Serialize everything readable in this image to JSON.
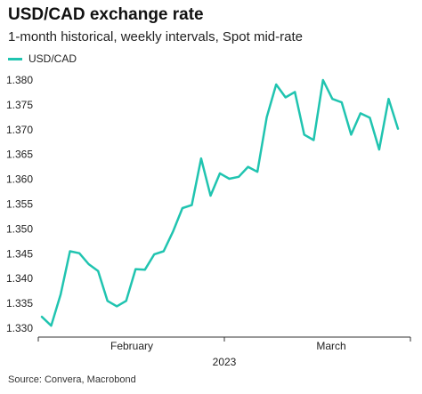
{
  "title": "USD/CAD exchange rate",
  "subtitle": "1-month historical, weekly intervals, Spot mid-rate",
  "source": "Source: Convera, Macrobond",
  "chart_data": {
    "type": "line",
    "title": "USD/CAD exchange rate",
    "subtitle": "1-month historical, weekly intervals, Spot mid-rate",
    "xlabel": "",
    "ylabel": "",
    "ylim": [
      1.33,
      1.38
    ],
    "yticks": [
      "1.330",
      "1.335",
      "1.340",
      "1.345",
      "1.350",
      "1.355",
      "1.360",
      "1.365",
      "1.370",
      "1.375",
      "1.380"
    ],
    "x_ticks": [
      "February",
      "March"
    ],
    "x_group_label": "2023",
    "grid": false,
    "legend": "top-left",
    "series": [
      {
        "name": "USD/CAD",
        "color": "#20c4b0",
        "values": [
          1.3323,
          1.3305,
          1.3368,
          1.3455,
          1.3451,
          1.3429,
          1.3415,
          1.3355,
          1.3344,
          1.3355,
          1.3419,
          1.3418,
          1.3449,
          1.3455,
          1.3495,
          1.3542,
          1.3548,
          1.3642,
          1.3567,
          1.3612,
          1.3601,
          1.3605,
          1.3625,
          1.3615,
          1.3725,
          1.3791,
          1.3765,
          1.3776,
          1.369,
          1.3679,
          1.38,
          1.3762,
          1.3755,
          1.369,
          1.3733,
          1.3724,
          1.366,
          1.3762,
          1.3702
        ]
      }
    ]
  }
}
